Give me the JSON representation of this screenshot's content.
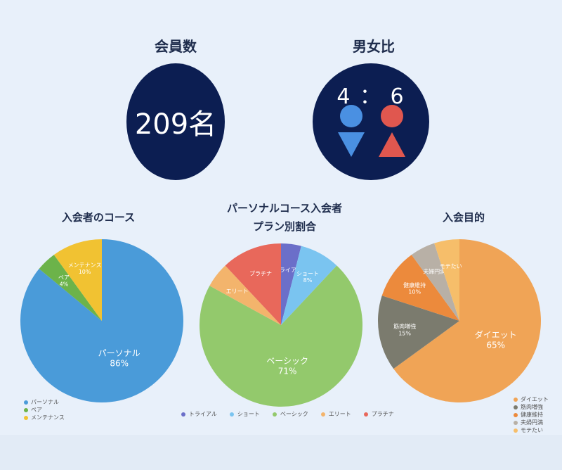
{
  "members": {
    "title": "会員数",
    "value": "209名"
  },
  "gender": {
    "title": "男女比",
    "ratio": "4 ： 6",
    "male_color": "#4a90e2",
    "female_color": "#e0574f"
  },
  "chart_data": [
    {
      "type": "pie",
      "title": "入会者のコース",
      "categories": [
        "パーソナル",
        "ペア",
        "メンテナンス"
      ],
      "values": [
        86,
        4,
        10
      ],
      "labels": [
        "86%",
        "4%",
        "10%"
      ],
      "colors": [
        "#4a9bd9",
        "#6cb34a",
        "#f1c232"
      ],
      "legend": "bottom-left"
    },
    {
      "type": "pie",
      "title": "パーソナルコース入会者\nプラン別割合",
      "categories": [
        "トライアル",
        "ショート",
        "ベーシック",
        "エリート",
        "プラチナ"
      ],
      "values": [
        4,
        8,
        71,
        5,
        12
      ],
      "labels": [
        "",
        "8%",
        "71%",
        "",
        ""
      ],
      "colors": [
        "#6b6fc9",
        "#7ac4f0",
        "#93c96c",
        "#f3b46c",
        "#e8685b"
      ],
      "legend": "bottom"
    },
    {
      "type": "pie",
      "title": "入会目的",
      "categories": [
        "ダイエット",
        "筋肉増強",
        "健康維持",
        "夫婦円満",
        "モテたい"
      ],
      "values": [
        65,
        15,
        10,
        5,
        5
      ],
      "labels": [
        "65%",
        "15%",
        "10%",
        "",
        ""
      ],
      "colors": [
        "#f0a456",
        "#7b7b6e",
        "#ec8a3c",
        "#b8b0a6",
        "#f6be6a"
      ],
      "legend": "bottom-right"
    }
  ]
}
